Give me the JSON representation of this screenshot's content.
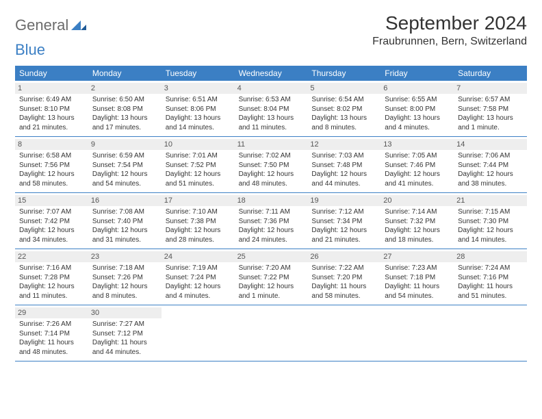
{
  "brand": {
    "part1": "General",
    "part2": "Blue"
  },
  "title": "September 2024",
  "location": "Fraubrunnen, Bern, Switzerland",
  "colors": {
    "header_bg": "#3b7fc4",
    "header_fg": "#ffffff",
    "daynum_bg": "#eeeeee",
    "border": "#3b7fc4",
    "text": "#333333"
  },
  "day_headers": [
    "Sunday",
    "Monday",
    "Tuesday",
    "Wednesday",
    "Thursday",
    "Friday",
    "Saturday"
  ],
  "days": [
    {
      "n": "1",
      "sr": "6:49 AM",
      "ss": "8:10 PM",
      "dl": "13 hours and 21 minutes."
    },
    {
      "n": "2",
      "sr": "6:50 AM",
      "ss": "8:08 PM",
      "dl": "13 hours and 17 minutes."
    },
    {
      "n": "3",
      "sr": "6:51 AM",
      "ss": "8:06 PM",
      "dl": "13 hours and 14 minutes."
    },
    {
      "n": "4",
      "sr": "6:53 AM",
      "ss": "8:04 PM",
      "dl": "13 hours and 11 minutes."
    },
    {
      "n": "5",
      "sr": "6:54 AM",
      "ss": "8:02 PM",
      "dl": "13 hours and 8 minutes."
    },
    {
      "n": "6",
      "sr": "6:55 AM",
      "ss": "8:00 PM",
      "dl": "13 hours and 4 minutes."
    },
    {
      "n": "7",
      "sr": "6:57 AM",
      "ss": "7:58 PM",
      "dl": "13 hours and 1 minute."
    },
    {
      "n": "8",
      "sr": "6:58 AM",
      "ss": "7:56 PM",
      "dl": "12 hours and 58 minutes."
    },
    {
      "n": "9",
      "sr": "6:59 AM",
      "ss": "7:54 PM",
      "dl": "12 hours and 54 minutes."
    },
    {
      "n": "10",
      "sr": "7:01 AM",
      "ss": "7:52 PM",
      "dl": "12 hours and 51 minutes."
    },
    {
      "n": "11",
      "sr": "7:02 AM",
      "ss": "7:50 PM",
      "dl": "12 hours and 48 minutes."
    },
    {
      "n": "12",
      "sr": "7:03 AM",
      "ss": "7:48 PM",
      "dl": "12 hours and 44 minutes."
    },
    {
      "n": "13",
      "sr": "7:05 AM",
      "ss": "7:46 PM",
      "dl": "12 hours and 41 minutes."
    },
    {
      "n": "14",
      "sr": "7:06 AM",
      "ss": "7:44 PM",
      "dl": "12 hours and 38 minutes."
    },
    {
      "n": "15",
      "sr": "7:07 AM",
      "ss": "7:42 PM",
      "dl": "12 hours and 34 minutes."
    },
    {
      "n": "16",
      "sr": "7:08 AM",
      "ss": "7:40 PM",
      "dl": "12 hours and 31 minutes."
    },
    {
      "n": "17",
      "sr": "7:10 AM",
      "ss": "7:38 PM",
      "dl": "12 hours and 28 minutes."
    },
    {
      "n": "18",
      "sr": "7:11 AM",
      "ss": "7:36 PM",
      "dl": "12 hours and 24 minutes."
    },
    {
      "n": "19",
      "sr": "7:12 AM",
      "ss": "7:34 PM",
      "dl": "12 hours and 21 minutes."
    },
    {
      "n": "20",
      "sr": "7:14 AM",
      "ss": "7:32 PM",
      "dl": "12 hours and 18 minutes."
    },
    {
      "n": "21",
      "sr": "7:15 AM",
      "ss": "7:30 PM",
      "dl": "12 hours and 14 minutes."
    },
    {
      "n": "22",
      "sr": "7:16 AM",
      "ss": "7:28 PM",
      "dl": "12 hours and 11 minutes."
    },
    {
      "n": "23",
      "sr": "7:18 AM",
      "ss": "7:26 PM",
      "dl": "12 hours and 8 minutes."
    },
    {
      "n": "24",
      "sr": "7:19 AM",
      "ss": "7:24 PM",
      "dl": "12 hours and 4 minutes."
    },
    {
      "n": "25",
      "sr": "7:20 AM",
      "ss": "7:22 PM",
      "dl": "12 hours and 1 minute."
    },
    {
      "n": "26",
      "sr": "7:22 AM",
      "ss": "7:20 PM",
      "dl": "11 hours and 58 minutes."
    },
    {
      "n": "27",
      "sr": "7:23 AM",
      "ss": "7:18 PM",
      "dl": "11 hours and 54 minutes."
    },
    {
      "n": "28",
      "sr": "7:24 AM",
      "ss": "7:16 PM",
      "dl": "11 hours and 51 minutes."
    },
    {
      "n": "29",
      "sr": "7:26 AM",
      "ss": "7:14 PM",
      "dl": "11 hours and 48 minutes."
    },
    {
      "n": "30",
      "sr": "7:27 AM",
      "ss": "7:12 PM",
      "dl": "11 hours and 44 minutes."
    }
  ],
  "labels": {
    "sunrise": "Sunrise:",
    "sunset": "Sunset:",
    "daylight": "Daylight:"
  }
}
